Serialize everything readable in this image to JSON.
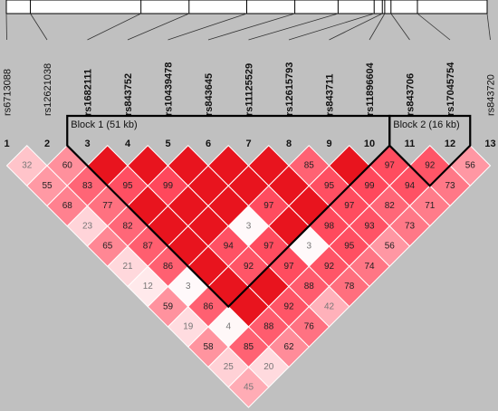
{
  "snps": [
    {
      "index": "1",
      "name": "rs6713088",
      "bold": false
    },
    {
      "index": "2",
      "name": "rs12621038",
      "bold": false
    },
    {
      "index": "3",
      "name": "rs1682111",
      "bold": true
    },
    {
      "index": "4",
      "name": "rs843752",
      "bold": true
    },
    {
      "index": "5",
      "name": "rs10439478",
      "bold": true
    },
    {
      "index": "6",
      "name": "rs843645",
      "bold": true
    },
    {
      "index": "7",
      "name": "rs11125529",
      "bold": true
    },
    {
      "index": "8",
      "name": "rs12615793",
      "bold": true
    },
    {
      "index": "9",
      "name": "rs843711",
      "bold": true
    },
    {
      "index": "10",
      "name": "rs11896604",
      "bold": true
    },
    {
      "index": "11",
      "name": "rs843706",
      "bold": true
    },
    {
      "index": "12",
      "name": "rs17045754",
      "bold": true
    },
    {
      "index": "13",
      "name": "rs843720",
      "bold": false
    }
  ],
  "physical_positions": [
    0.0,
    0.05,
    0.28,
    0.38,
    0.5,
    0.6,
    0.69,
    0.765,
    0.782,
    0.787,
    0.8,
    0.855,
    1.0
  ],
  "blocks": [
    {
      "label": "Block 1 (51 kb)",
      "start": 3,
      "end": 10
    },
    {
      "label": "Block 2 (16 kb)",
      "start": 11,
      "end": 12
    }
  ],
  "ld_values": [
    {
      "i": 1,
      "j": 2,
      "v": 32
    },
    {
      "i": 2,
      "j": 3,
      "v": 60
    },
    {
      "i": 1,
      "j": 3,
      "v": 55
    },
    {
      "i": 3,
      "j": 4,
      "v": 100
    },
    {
      "i": 2,
      "j": 4,
      "v": 83
    },
    {
      "i": 1,
      "j": 4,
      "v": 68
    },
    {
      "i": 4,
      "j": 5,
      "v": 100
    },
    {
      "i": 3,
      "j": 5,
      "v": 95
    },
    {
      "i": 2,
      "j": 5,
      "v": 77
    },
    {
      "i": 1,
      "j": 5,
      "v": 23
    },
    {
      "i": 5,
      "j": 6,
      "v": 100
    },
    {
      "i": 4,
      "j": 6,
      "v": 99
    },
    {
      "i": 3,
      "j": 6,
      "v": 100
    },
    {
      "i": 2,
      "j": 6,
      "v": 82
    },
    {
      "i": 1,
      "j": 6,
      "v": 65
    },
    {
      "i": 6,
      "j": 7,
      "v": 100
    },
    {
      "i": 5,
      "j": 7,
      "v": 100
    },
    {
      "i": 4,
      "j": 7,
      "v": 100
    },
    {
      "i": 3,
      "j": 7,
      "v": 100
    },
    {
      "i": 2,
      "j": 7,
      "v": 87
    },
    {
      "i": 1,
      "j": 7,
      "v": 21
    },
    {
      "i": 7,
      "j": 8,
      "v": 100
    },
    {
      "i": 6,
      "j": 8,
      "v": 100
    },
    {
      "i": 5,
      "j": 8,
      "v": 100
    },
    {
      "i": 4,
      "j": 8,
      "v": 100
    },
    {
      "i": 3,
      "j": 8,
      "v": 100
    },
    {
      "i": 2,
      "j": 8,
      "v": 86
    },
    {
      "i": 1,
      "j": 8,
      "v": 12
    },
    {
      "i": 8,
      "j": 9,
      "v": 85
    },
    {
      "i": 7,
      "j": 9,
      "v": 100
    },
    {
      "i": 6,
      "j": 9,
      "v": 97
    },
    {
      "i": 5,
      "j": 9,
      "v": 3
    },
    {
      "i": 4,
      "j": 9,
      "v": 94
    },
    {
      "i": 3,
      "j": 9,
      "v": 100
    },
    {
      "i": 2,
      "j": 9,
      "v": 3
    },
    {
      "i": 1,
      "j": 9,
      "v": 59
    },
    {
      "i": 9,
      "j": 10,
      "v": 100
    },
    {
      "i": 8,
      "j": 10,
      "v": 95
    },
    {
      "i": 7,
      "j": 10,
      "v": 100
    },
    {
      "i": 6,
      "j": 10,
      "v": 100
    },
    {
      "i": 5,
      "j": 10,
      "v": 97
    },
    {
      "i": 4,
      "j": 10,
      "v": 92
    },
    {
      "i": 3,
      "j": 10,
      "v": 100
    },
    {
      "i": 2,
      "j": 10,
      "v": 86
    },
    {
      "i": 1,
      "j": 10,
      "v": 19
    },
    {
      "i": 10,
      "j": 11,
      "v": 97
    },
    {
      "i": 9,
      "j": 11,
      "v": 99
    },
    {
      "i": 8,
      "j": 11,
      "v": 97
    },
    {
      "i": 7,
      "j": 11,
      "v": 98
    },
    {
      "i": 6,
      "j": 11,
      "v": 3
    },
    {
      "i": 5,
      "j": 11,
      "v": 97
    },
    {
      "i": 4,
      "j": 11,
      "v": 100
    },
    {
      "i": 3,
      "j": 11,
      "v": 100
    },
    {
      "i": 2,
      "j": 11,
      "v": 4
    },
    {
      "i": 1,
      "j": 11,
      "v": 58
    },
    {
      "i": 11,
      "j": 12,
      "v": 92
    },
    {
      "i": 10,
      "j": 12,
      "v": 94
    },
    {
      "i": 9,
      "j": 12,
      "v": 82
    },
    {
      "i": 8,
      "j": 12,
      "v": 93
    },
    {
      "i": 7,
      "j": 12,
      "v": 95
    },
    {
      "i": 6,
      "j": 12,
      "v": 92
    },
    {
      "i": 5,
      "j": 12,
      "v": 88
    },
    {
      "i": 4,
      "j": 12,
      "v": 92
    },
    {
      "i": 3,
      "j": 12,
      "v": 88
    },
    {
      "i": 2,
      "j": 12,
      "v": 85
    },
    {
      "i": 1,
      "j": 12,
      "v": 25
    },
    {
      "i": 12,
      "j": 13,
      "v": 56
    },
    {
      "i": 11,
      "j": 13,
      "v": 73
    },
    {
      "i": 10,
      "j": 13,
      "v": 71
    },
    {
      "i": 9,
      "j": 13,
      "v": 73
    },
    {
      "i": 8,
      "j": 13,
      "v": 56
    },
    {
      "i": 7,
      "j": 13,
      "v": 74
    },
    {
      "i": 6,
      "j": 13,
      "v": 78
    },
    {
      "i": 5,
      "j": 13,
      "v": 42
    },
    {
      "i": 4,
      "j": 13,
      "v": 76
    },
    {
      "i": 3,
      "j": 13,
      "v": 62
    },
    {
      "i": 2,
      "j": 13,
      "v": 20
    },
    {
      "i": 1,
      "j": 13,
      "v": 45
    }
  ],
  "colors": {
    "background": "#c0c0c0",
    "strong_ld": "#e8141e",
    "weak_ld": "#ffffff",
    "outline": "#000000"
  }
}
